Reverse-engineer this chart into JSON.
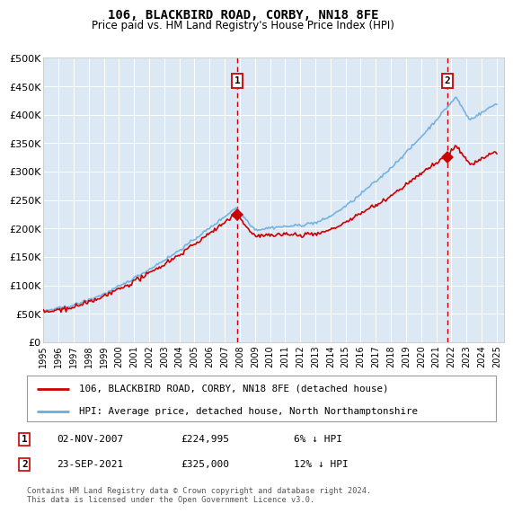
{
  "title": "106, BLACKBIRD ROAD, CORBY, NN18 8FE",
  "subtitle": "Price paid vs. HM Land Registry's House Price Index (HPI)",
  "bg_color": "#dce9f5",
  "hpi_color": "#6aacdd",
  "price_color": "#cc0000",
  "vline_color": "#cc0000",
  "sale1_x": 2007.84,
  "sale1_y": 224995,
  "sale2_x": 2021.73,
  "sale2_y": 325000,
  "xmin": 1995,
  "xmax": 2025.5,
  "ymin": 0,
  "ymax": 500000,
  "yticks": [
    0,
    50000,
    100000,
    150000,
    200000,
    250000,
    300000,
    350000,
    400000,
    450000,
    500000
  ],
  "ytick_labels": [
    "£0",
    "£50K",
    "£100K",
    "£150K",
    "£200K",
    "£250K",
    "£300K",
    "£350K",
    "£400K",
    "£450K",
    "£500K"
  ],
  "xticks": [
    1995,
    1996,
    1997,
    1998,
    1999,
    2000,
    2001,
    2002,
    2003,
    2004,
    2005,
    2006,
    2007,
    2008,
    2009,
    2010,
    2011,
    2012,
    2013,
    2014,
    2015,
    2016,
    2017,
    2018,
    2019,
    2020,
    2021,
    2022,
    2023,
    2024,
    2025
  ],
  "legend_line1": "106, BLACKBIRD ROAD, CORBY, NN18 8FE (detached house)",
  "legend_line2": "HPI: Average price, detached house, North Northamptonshire",
  "annot1_date": "02-NOV-2007",
  "annot1_price": "£224,995",
  "annot1_hpi": "6% ↓ HPI",
  "annot2_date": "23-SEP-2021",
  "annot2_price": "£325,000",
  "annot2_hpi": "12% ↓ HPI",
  "footer": "Contains HM Land Registry data © Crown copyright and database right 2024.\nThis data is licensed under the Open Government Licence v3.0."
}
